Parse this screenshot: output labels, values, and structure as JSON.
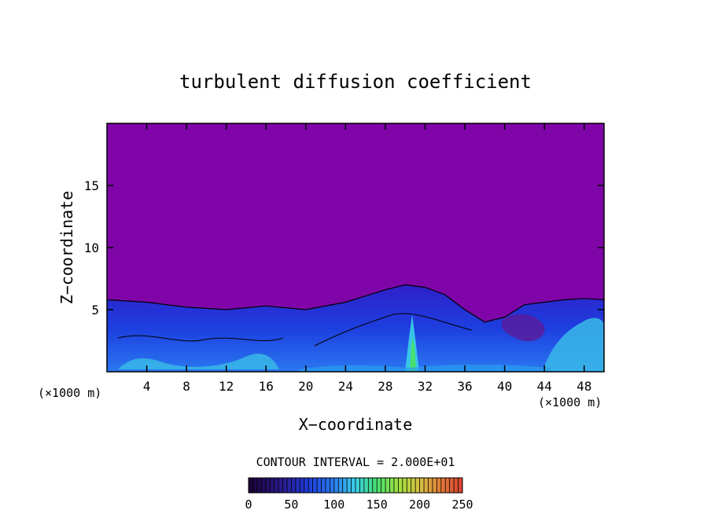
{
  "chart_data": {
    "type": "heatmap",
    "title": "turbulent diffusion coefficient",
    "xlabel": "X−coordinate",
    "ylabel": "Z−coordinate",
    "x_unit_left": "(×1000 m)",
    "x_unit_right": "(×1000 m)",
    "xlim": [
      0,
      50
    ],
    "ylim": [
      0,
      20
    ],
    "x_ticks": [
      4,
      8,
      12,
      16,
      20,
      24,
      28,
      32,
      36,
      40,
      44,
      48
    ],
    "y_ticks": [
      5,
      10,
      15
    ],
    "background_value": 0,
    "boundary_layer_top_x": [
      0,
      4,
      8,
      12,
      16,
      20,
      24,
      28,
      30,
      32,
      34,
      36,
      38,
      40,
      42,
      44,
      46,
      48,
      50
    ],
    "boundary_layer_top_z": [
      5.8,
      5.6,
      5.2,
      5.0,
      5.3,
      5.0,
      5.6,
      6.6,
      7.0,
      6.8,
      6.2,
      5.0,
      4.0,
      4.4,
      5.4,
      5.6,
      5.8,
      5.9,
      5.8
    ],
    "contour_interval": "CONTOUR INTERVAL = 2.000E+01",
    "colorbar": {
      "min": 0,
      "max": 250,
      "tick_labels": [
        "0",
        "50",
        "100",
        "150",
        "200",
        "250"
      ],
      "colors": [
        "#1a0033",
        "#2a1a8a",
        "#1e3cd8",
        "#2a7ef0",
        "#3ad0e6",
        "#46e070",
        "#a0e040",
        "#d8c040",
        "#e07a3a",
        "#d84030"
      ]
    }
  }
}
